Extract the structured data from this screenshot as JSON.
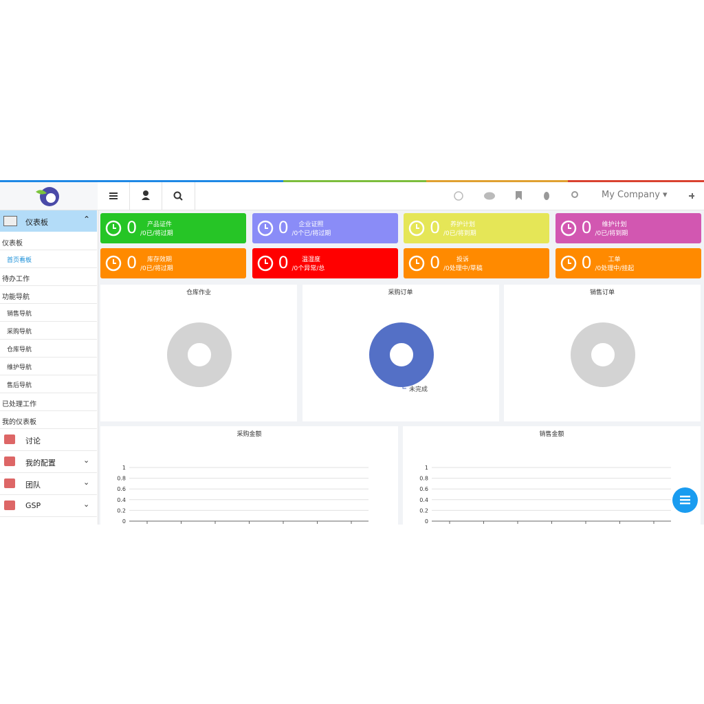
{
  "header": {
    "company": "My Company"
  },
  "sidebar": {
    "section": "仪表板",
    "items": [
      {
        "label": "仪表板",
        "level": 1
      },
      {
        "label": "首页看板",
        "level": 2,
        "active": true
      },
      {
        "label": "待办工作",
        "level": 1
      },
      {
        "label": "功能导航",
        "level": 1
      },
      {
        "label": "销售导航",
        "level": 2
      },
      {
        "label": "采购导航",
        "level": 2
      },
      {
        "label": "仓库导航",
        "level": 2
      },
      {
        "label": "维护导航",
        "level": 2
      },
      {
        "label": "售后导航",
        "level": 2
      },
      {
        "label": "已处理工作",
        "level": 1
      },
      {
        "label": "我的仪表板",
        "level": 1
      }
    ],
    "modules": [
      {
        "label": "讨论",
        "expandable": false
      },
      {
        "label": "我的配置",
        "expandable": true
      },
      {
        "label": "团队",
        "expandable": true
      },
      {
        "label": "GSP",
        "expandable": true
      }
    ]
  },
  "tiles": [
    {
      "count": 0,
      "title": "产品证件",
      "subtitle": "/0已/将过期",
      "color": "#26c526"
    },
    {
      "count": 0,
      "title": "企业证照",
      "subtitle": "/0个已/将过期",
      "color": "#8a8cf7"
    },
    {
      "count": 0,
      "title": "养护计划",
      "subtitle": "/0已/将到期",
      "color": "#e5e657"
    },
    {
      "count": 0,
      "title": "维护计划",
      "subtitle": "/0已/将到期",
      "color": "#d257b1"
    },
    {
      "count": 0,
      "title": "库存效期",
      "subtitle": "/0已/将过期",
      "color": "#ff8a00"
    },
    {
      "count": 0,
      "title": "温湿度",
      "subtitle": "/0个异常/总",
      "color": "#ff0000"
    },
    {
      "count": 0,
      "title": "投诉",
      "subtitle": "/0处理中/草稿",
      "color": "#ff8a00"
    },
    {
      "count": 0,
      "title": "工单",
      "subtitle": "/0处理中/挂起",
      "color": "#ff8a00"
    }
  ],
  "donuts": [
    {
      "title": "仓库作业",
      "color": "#d3d3d3"
    },
    {
      "title": "采购订单",
      "color": "#5470c6",
      "legend": "未完成"
    },
    {
      "title": "销售订单",
      "color": "#d3d3d3"
    }
  ],
  "line_charts": [
    {
      "title": "采购金额",
      "ylim": [
        0,
        1
      ],
      "yticks": [
        0,
        0.2,
        0.4,
        0.6,
        0.8,
        1
      ]
    },
    {
      "title": "销售金额",
      "ylim": [
        0,
        1
      ],
      "yticks": [
        0,
        0.2,
        0.4,
        0.6,
        0.8,
        1
      ]
    }
  ]
}
